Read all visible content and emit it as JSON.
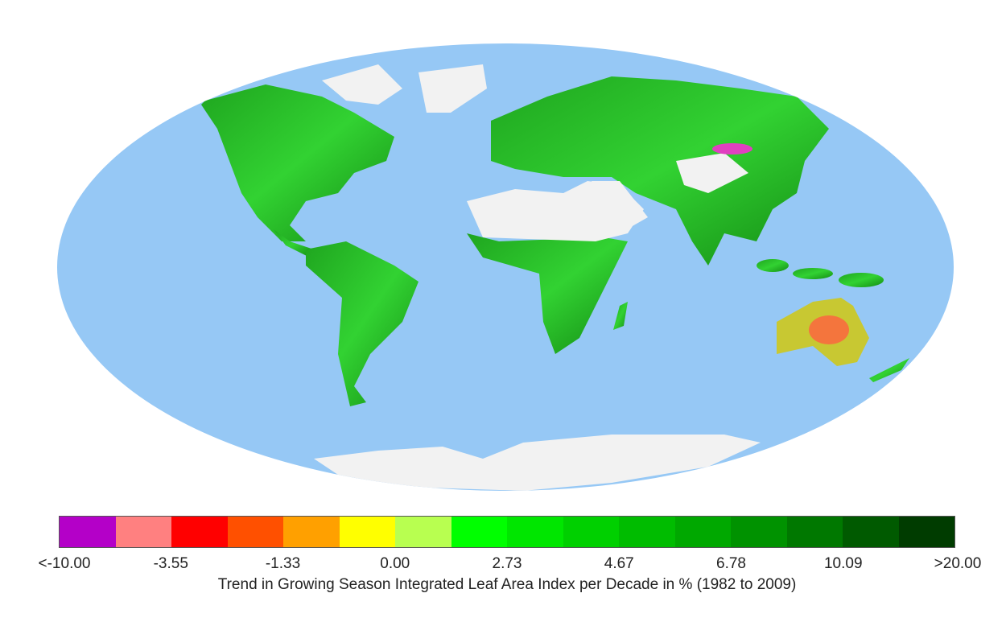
{
  "map": {
    "projection": "elliptical world map",
    "colors": {
      "ocean": "#96c8f5",
      "no_data": "#f2f2f2"
    }
  },
  "legend": {
    "colors": [
      "#b400c8",
      "#ff8080",
      "#ff0000",
      "#ff5000",
      "#ffa000",
      "#ffff00",
      "#b8ff50",
      "#00ff00",
      "#00e600",
      "#00d000",
      "#00bc00",
      "#00a800",
      "#009200",
      "#007800",
      "#005a00",
      "#003c00"
    ],
    "ticks": [
      "<-10.00",
      "-3.55",
      "-1.33",
      "0.00",
      "2.73",
      "4.67",
      "6.78",
      "10.09",
      ">20.00"
    ],
    "caption": "Trend in Growing Season Integrated Leaf Area Index per Decade in % (1982 to 2009)"
  }
}
